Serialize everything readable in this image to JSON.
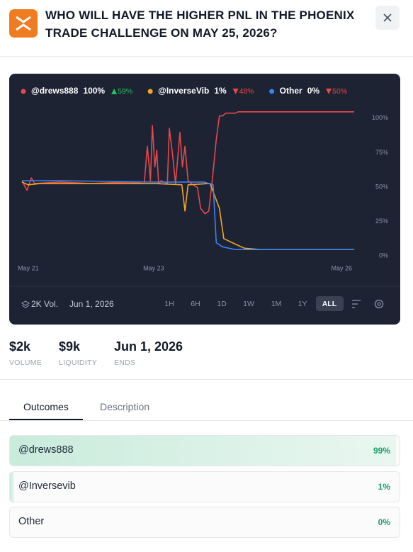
{
  "header": {
    "title": "WHO WILL HAVE THE HIGHER PNL IN THE PHOENIX TRADE CHALLENGE ON MAY 25, 2026?"
  },
  "chart_data": {
    "type": "line",
    "xlim": [
      20.9,
      26.2
    ],
    "xticks": [
      {
        "value": 21,
        "label": "May 21"
      },
      {
        "value": 23,
        "label": "May 23"
      },
      {
        "value": 26,
        "label": "May 26"
      }
    ],
    "ylim": [
      -4,
      104
    ],
    "yticks": [
      {
        "value": 100,
        "label": "100%"
      },
      {
        "value": 75,
        "label": "75%"
      },
      {
        "value": 50,
        "label": "50%"
      },
      {
        "value": 25,
        "label": "25%"
      },
      {
        "value": 0,
        "label": "0%"
      }
    ],
    "grid": false,
    "series": [
      {
        "name": "@drews888",
        "color": "#e5484d",
        "current": "100%",
        "change": "59%",
        "change_direction": "up",
        "x": [
          20.9,
          20.98,
          21.05,
          21.1,
          21.5,
          22,
          22.6,
          22.85,
          22.9,
          22.95,
          22.98,
          23.02,
          23.05,
          23.08,
          23.12,
          23.22,
          23.25,
          23.3,
          23.35,
          23.42,
          23.46,
          23.5,
          23.55,
          23.6,
          23.7,
          23.75,
          23.82,
          23.88,
          23.94,
          24.0,
          24.05,
          24.1,
          24.15,
          24.3,
          24.35,
          26.2
        ],
        "values": [
          50,
          43,
          52,
          48,
          49,
          48,
          49,
          48,
          75,
          50,
          90,
          60,
          72,
          48,
          50,
          48,
          88,
          70,
          48,
          85,
          60,
          75,
          50,
          48,
          45,
          30,
          26,
          28,
          52,
          80,
          97,
          97,
          99,
          99,
          100,
          100
        ]
      },
      {
        "name": "@InverseVib",
        "color": "#f5a623",
        "current": "1%",
        "change": "48%",
        "change_direction": "down",
        "x": [
          20.9,
          21.0,
          21.2,
          22,
          23.0,
          23.45,
          23.5,
          23.55,
          23.9,
          24.05,
          24.12,
          24.3,
          24.45,
          24.7,
          26.2
        ],
        "values": [
          49,
          47,
          48,
          48,
          48,
          47,
          28,
          47,
          48,
          30,
          8,
          4,
          1,
          0,
          0
        ]
      },
      {
        "name": "Other",
        "color": "#3b82f6",
        "current": "0%",
        "change": "50%",
        "change_direction": "down",
        "x": [
          20.9,
          21.5,
          23.0,
          23.8,
          23.95,
          24.0,
          24.1,
          24.3,
          24.45,
          26.2
        ],
        "values": [
          50,
          50,
          49,
          49,
          47,
          5,
          2,
          0,
          0,
          0
        ]
      }
    ]
  },
  "chart_footer": {
    "volume": "2K Vol.",
    "date": "Jun 1, 2026",
    "ranges": [
      "1H",
      "6H",
      "1D",
      "1W",
      "1M",
      "1Y",
      "ALL"
    ]
  },
  "stats": [
    {
      "value": "$2k",
      "label": "VOLUME"
    },
    {
      "value": "$9k",
      "label": "LIQUIDITY"
    },
    {
      "value": "Jun 1, 2026",
      "label": "ENDS"
    }
  ],
  "tabs": [
    "Outcomes",
    "Description"
  ],
  "outcomes": [
    {
      "name": "@drews888",
      "value": 99,
      "value_label": "99%"
    },
    {
      "name": "@Inversevib",
      "value": 1,
      "value_label": "1%"
    },
    {
      "name": "Other",
      "value": 0,
      "value_label": "0%"
    }
  ]
}
